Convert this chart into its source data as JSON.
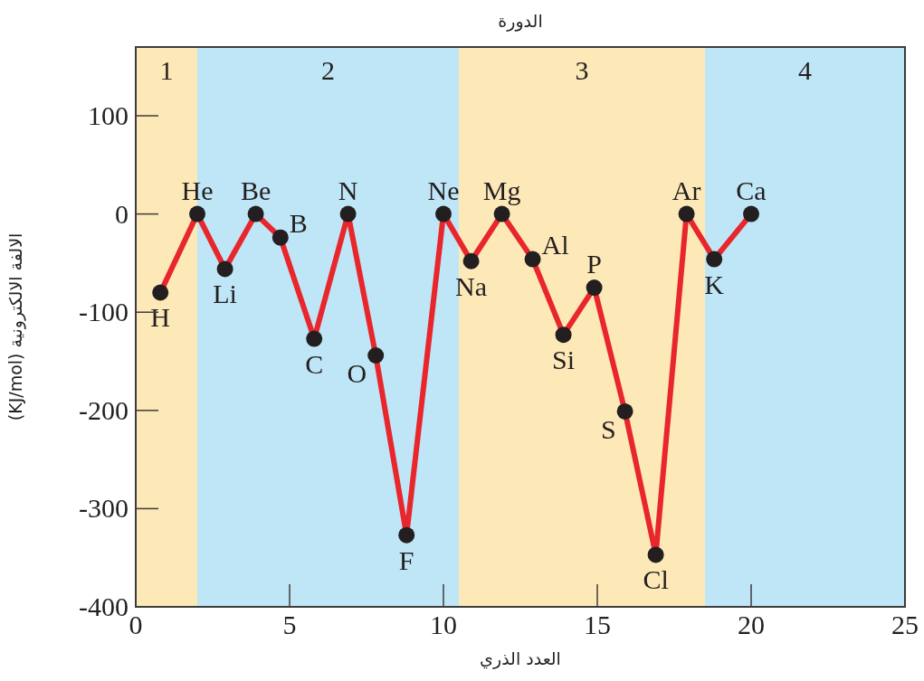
{
  "chart_data": {
    "type": "line",
    "title": "الدورة",
    "xlabel": "العدد الذري",
    "ylabel": "الالفة الالكترونية (KJ/mol)",
    "x": [
      0.8,
      2.0,
      2.9,
      3.9,
      4.7,
      5.8,
      6.9,
      7.8,
      8.8,
      10.0,
      10.9,
      11.9,
      12.9,
      13.9,
      14.9,
      15.9,
      16.9,
      17.9,
      18.8,
      20.0
    ],
    "series": [
      {
        "color": "#e8262c",
        "values": [
          -80,
          0,
          -56,
          0,
          -24,
          -127,
          0,
          -144,
          -327,
          0,
          -48,
          0,
          -46,
          -123,
          -75,
          -201,
          -347,
          0,
          -46,
          0
        ]
      }
    ],
    "marker": "circle",
    "line_style": "solid",
    "xlim": [
      0,
      25
    ],
    "ylim": [
      -400,
      170
    ],
    "xticks": [
      0,
      5,
      10,
      15,
      20,
      25
    ],
    "yticks": [
      -400,
      -300,
      -200,
      -100,
      0,
      100
    ],
    "bands": [
      {
        "axis": "x",
        "from": 0,
        "to": 2,
        "label": "1",
        "color": "#fde9b8"
      },
      {
        "axis": "x",
        "from": 2,
        "to": 10.5,
        "label": "2",
        "color": "#bfe6f6"
      },
      {
        "axis": "x",
        "from": 10.5,
        "to": 18.5,
        "label": "3",
        "color": "#fde9b8"
      },
      {
        "axis": "x",
        "from": 18.5,
        "to": 25,
        "label": "4",
        "color": "#bfe6f6"
      }
    ],
    "annotations": [
      {
        "text": "H",
        "x": 0.8,
        "y": -80
      },
      {
        "text": "He",
        "x": 2.0,
        "y": 0
      },
      {
        "text": "Li",
        "x": 2.9,
        "y": -56
      },
      {
        "text": "Be",
        "x": 3.9,
        "y": 0
      },
      {
        "text": "B",
        "x": 4.7,
        "y": -24
      },
      {
        "text": "C",
        "x": 5.8,
        "y": -127
      },
      {
        "text": "N",
        "x": 6.9,
        "y": 0
      },
      {
        "text": "O",
        "x": 7.8,
        "y": -144
      },
      {
        "text": "F",
        "x": 8.8,
        "y": -327
      },
      {
        "text": "Ne",
        "x": 10.0,
        "y": 0
      },
      {
        "text": "Na",
        "x": 10.9,
        "y": -48
      },
      {
        "text": "Mg",
        "x": 11.9,
        "y": 0
      },
      {
        "text": "Al",
        "x": 12.9,
        "y": -46
      },
      {
        "text": "Si",
        "x": 13.9,
        "y": -123
      },
      {
        "text": "P",
        "x": 14.9,
        "y": -75
      },
      {
        "text": "S",
        "x": 15.9,
        "y": -201
      },
      {
        "text": "Cl",
        "x": 16.9,
        "y": -347
      },
      {
        "text": "Ar",
        "x": 17.9,
        "y": 0
      },
      {
        "text": "K",
        "x": 18.8,
        "y": -46
      },
      {
        "text": "Ca",
        "x": 20.0,
        "y": 0
      }
    ]
  }
}
